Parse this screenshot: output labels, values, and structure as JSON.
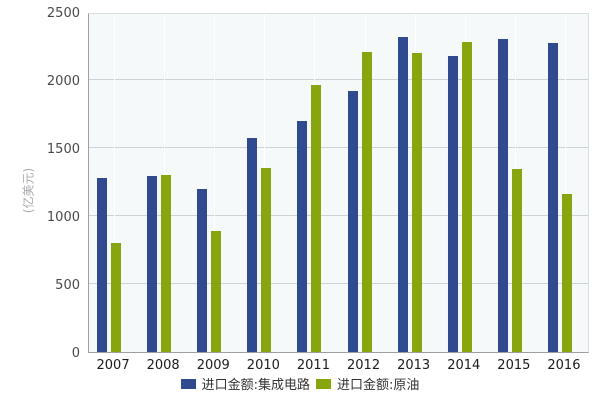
{
  "chart_data": {
    "type": "bar",
    "title": "",
    "categories": [
      "2007",
      "2008",
      "2009",
      "2010",
      "2011",
      "2012",
      "2013",
      "2014",
      "2015",
      "2016"
    ],
    "series": [
      {
        "name": "进口金额:集成电路",
        "color": "#2f4a8e",
        "values": [
          1277,
          1295,
          1199,
          1570,
          1702,
          1921,
          2313,
          2176,
          2299,
          2271
        ]
      },
      {
        "name": "进口金额:原油",
        "color": "#87a50e",
        "values": [
          798,
          1303,
          893,
          1352,
          1967,
          2207,
          2196,
          2283,
          1345,
          1165
        ]
      }
    ],
    "xlabel": "",
    "ylabel": "(亿美元)",
    "ylim": [
      0,
      2500
    ],
    "yticks": [
      0,
      500,
      1000,
      1500,
      2000,
      2500
    ],
    "grid": true,
    "legend_position": "bottom"
  },
  "colors": {
    "plot_background": "#f6f9fa",
    "gridline": "#ccd2d5",
    "axis_line": "#9aa0a3",
    "tick_label": "#4a4a4a",
    "x_label": "#1c1c1c",
    "axis_name": "#a9adb0",
    "legend_text": "#333333",
    "series_blue": "#2f4a8e",
    "series_green": "#87a50e"
  }
}
